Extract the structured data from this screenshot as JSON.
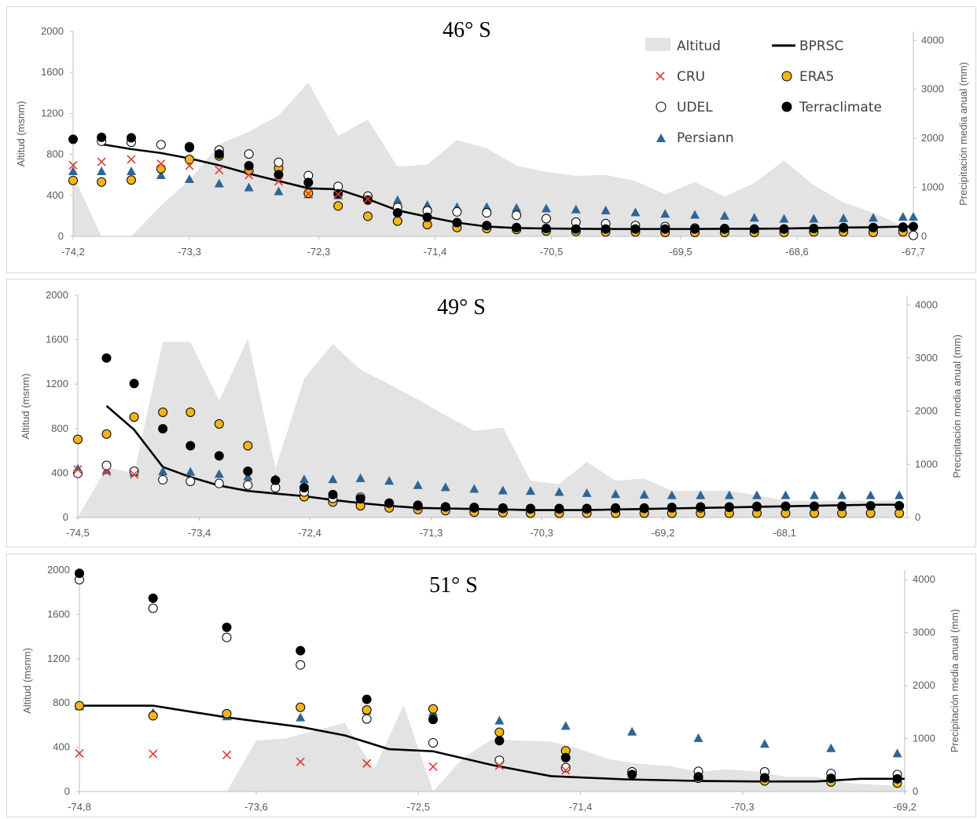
{
  "legend": {
    "altitud": "Altitud",
    "bprsc": "BPRSC",
    "cru": "CRU",
    "era5": "ERA5",
    "udel": "UDEL",
    "terraclimate": "Terraclimate",
    "persiann": "Persiann"
  },
  "colors": {
    "altitud": "#e3e3e3",
    "bprsc": "#000000",
    "cru": "#e03c31",
    "era5": "#f2b51c",
    "udel": "#ffffff",
    "terraclimate": "#000000",
    "persiann": "#2e6496"
  },
  "chart_data": [
    {
      "type": "line",
      "title": "46° S",
      "ylabel": "Altitud (msnm)",
      "y2label": "Precipitación media anual (mm)",
      "ylim": [
        0,
        2000
      ],
      "y2lim": [
        0,
        4181
      ],
      "xlim": [
        -74.2,
        -67.7
      ],
      "xticks": [
        "-74,2",
        "-73,3",
        "-72,3",
        "-71,4",
        "-70,5",
        "-69,5",
        "-68,6",
        "-67,7"
      ],
      "xtick_values": [
        -74.2,
        -73.3,
        -72.3,
        -71.4,
        -70.5,
        -69.5,
        -68.6,
        -67.7
      ],
      "yticks": [
        "0",
        "400",
        "800",
        "1200",
        "1600",
        "2000"
      ],
      "y2ticks": [
        "0",
        "1000",
        "2000",
        "3000",
        "4000"
      ],
      "legend_position": "top-right",
      "x": [
        -74.2,
        -73.98,
        -73.75,
        -73.52,
        -73.3,
        -73.07,
        -72.84,
        -72.61,
        -72.38,
        -72.15,
        -71.92,
        -71.69,
        -71.46,
        -71.23,
        -71.0,
        -70.77,
        -70.54,
        -70.31,
        -70.08,
        -69.85,
        -69.62,
        -69.39,
        -69.16,
        -68.93,
        -68.7,
        -68.47,
        -68.24,
        -68.01,
        -67.78,
        -67.7
      ],
      "altitud": [
        600,
        0,
        0,
        300,
        550,
        900,
        1020,
        1180,
        1500,
        980,
        1140,
        680,
        700,
        940,
        860,
        690,
        630,
        590,
        600,
        540,
        410,
        530,
        390,
        520,
        740,
        500,
        330,
        230,
        100,
        60
      ],
      "bprsc": [
        null,
        1880,
        1780,
        1700,
        1590,
        1450,
        1280,
        1130,
        980,
        960,
        760,
        530,
        400,
        280,
        200,
        170,
        160,
        155,
        150,
        150,
        150,
        150,
        155,
        155,
        160,
        170,
        180,
        185,
        200,
        200
      ],
      "cru": [
        1450,
        1520,
        1570,
        1480,
        1440,
        1350,
        1250,
        1120,
        870,
        860,
        760,
        null,
        null,
        null,
        null,
        null,
        null,
        null,
        null,
        null,
        null,
        null,
        null,
        null,
        null,
        null,
        null,
        null,
        null,
        null
      ],
      "era5": [
        1140,
        1110,
        1150,
        1380,
        1570,
        1640,
        1340,
        1390,
        880,
        620,
        410,
        310,
        240,
        180,
        160,
        140,
        110,
        100,
        90,
        90,
        80,
        80,
        80,
        80,
        80,
        90,
        90,
        80,
        90,
        null
      ],
      "udel": [
        null,
        1940,
        1920,
        1870,
        1830,
        1760,
        1680,
        1510,
        1240,
        1020,
        820,
        590,
        520,
        500,
        480,
        430,
        360,
        290,
        260,
        220,
        200,
        170,
        160,
        150,
        150,
        160,
        180,
        180,
        180,
        20
      ],
      "terraclimate": [
        1980,
        2020,
        2010,
        null,
        1810,
        1680,
        1440,
        1260,
        1100,
        870,
        740,
        480,
        390,
        280,
        220,
        180,
        160,
        150,
        150,
        150,
        150,
        150,
        150,
        150,
        150,
        160,
        170,
        180,
        190,
        200
      ],
      "persiann": [
        1330,
        1330,
        1330,
        1250,
        1170,
        1080,
        1000,
        920,
        860,
        840,
        820,
        740,
        640,
        600,
        600,
        580,
        570,
        550,
        530,
        490,
        460,
        440,
        420,
        380,
        360,
        360,
        370,
        380,
        400,
        400
      ]
    },
    {
      "type": "line",
      "title": "49° S",
      "ylabel": "Altitud (msnm)",
      "y2label": "Precipitación media anual (mm)",
      "ylim": [
        0,
        2000
      ],
      "y2lim": [
        0,
        4181
      ],
      "xlim": [
        -74.5,
        -66.99
      ],
      "xticks": [
        "-74,5",
        "-73,4",
        "-72,4",
        "-71,3",
        "-70,3",
        "-69,2",
        "-68,1"
      ],
      "xtick_values": [
        -74.5,
        -73.4,
        -72.4,
        -71.3,
        -70.3,
        -69.2,
        -68.1
      ],
      "yticks": [
        "0",
        "400",
        "800",
        "1200",
        "1600",
        "2000"
      ],
      "y2ticks": [
        "0",
        "1000",
        "2000",
        "3000",
        "4000"
      ],
      "legend_position": "none",
      "x": [
        -74.5,
        -74.24,
        -73.99,
        -73.73,
        -73.48,
        -73.22,
        -72.96,
        -72.71,
        -72.45,
        -72.19,
        -71.94,
        -71.68,
        -71.42,
        -71.17,
        -70.91,
        -70.65,
        -70.4,
        -70.14,
        -69.89,
        -69.63,
        -69.37,
        -69.12,
        -68.86,
        -68.6,
        -68.35,
        -68.09,
        -67.83,
        -67.58,
        -67.32,
        -67.06
      ],
      "altitud": [
        0,
        450,
        400,
        1580,
        1580,
        1050,
        1610,
        440,
        1250,
        1560,
        1330,
        1200,
        1060,
        920,
        780,
        810,
        330,
        300,
        500,
        330,
        350,
        240,
        240,
        240,
        200,
        150,
        150,
        150,
        150,
        150
      ],
      "bprsc": [
        null,
        2100,
        1650,
        950,
        760,
        600,
        500,
        450,
        400,
        330,
        270,
        220,
        180,
        170,
        160,
        150,
        140,
        140,
        140,
        150,
        160,
        170,
        180,
        190,
        200,
        210,
        220,
        230,
        240,
        240
      ],
      "cru": [
        900,
        860,
        810,
        null,
        null,
        null,
        null,
        null,
        null,
        null,
        null,
        null,
        null,
        null,
        null,
        null,
        null,
        null,
        null,
        null,
        null,
        null,
        null,
        null,
        null,
        null,
        null,
        null,
        null,
        null
      ],
      "era5": [
        1470,
        1570,
        1890,
        1980,
        1980,
        1760,
        1350,
        null,
        390,
        290,
        220,
        180,
        150,
        130,
        100,
        90,
        80,
        80,
        80,
        80,
        80,
        80,
        80,
        80,
        80,
        80,
        80,
        80,
        80,
        80
      ],
      "udel": [
        830,
        980,
        870,
        710,
        680,
        640,
        610,
        560,
        480,
        360,
        380,
        270,
        230,
        200,
        180,
        170,
        160,
        160,
        160,
        170,
        170,
        180,
        180,
        190,
        200,
        210,
        210,
        210,
        220,
        220
      ],
      "terraclimate": [
        null,
        3000,
        2520,
        1670,
        1350,
        1160,
        870,
        700,
        560,
        430,
        350,
        270,
        220,
        200,
        190,
        180,
        170,
        170,
        170,
        180,
        180,
        190,
        200,
        200,
        210,
        210,
        210,
        210,
        220,
        220
      ],
      "persiann": [
        920,
        890,
        850,
        870,
        860,
        820,
        770,
        730,
        720,
        720,
        740,
        690,
        610,
        570,
        540,
        510,
        500,
        480,
        460,
        440,
        430,
        420,
        420,
        420,
        420,
        420,
        420,
        420,
        420,
        420
      ]
    },
    {
      "type": "line",
      "title": "51° S",
      "ylabel": "Altitud (msnm)",
      "y2label": "Precipitación media anual (mm)",
      "ylim": [
        0,
        2000
      ],
      "y2lim": [
        0,
        4181
      ],
      "xlim": [
        -74.8,
        -69.2
      ],
      "xticks": [
        "-74,8",
        "-73,6",
        "-72,5",
        "-71,4",
        "-70,3",
        "-69,2"
      ],
      "xtick_values": [
        -74.8,
        -73.6,
        -72.5,
        -71.4,
        -70.3,
        -69.2
      ],
      "yticks": [
        "0",
        "400",
        "800",
        "1200",
        "1600",
        "2000"
      ],
      "y2ticks": [
        "0",
        "1000",
        "2000",
        "3000",
        "4000"
      ],
      "legend_position": "none",
      "x": [
        -74.8,
        -74.3,
        -73.8,
        -73.3,
        -72.8,
        -72.3,
        -71.8,
        -71.3,
        -70.8,
        -70.3,
        -69.8,
        -69.2
      ],
      "x_pts": [
        -74.8,
        -74.3,
        -73.8,
        -73.3,
        -72.8,
        -72.4,
        -71.95,
        -71.5,
        -71.05,
        -70.6,
        -70.15,
        -69.7,
        -69.25
      ],
      "altitud_x": [
        -74.8,
        -74.4,
        -74.0,
        -73.8,
        -73.6,
        -73.4,
        -73.2,
        -73.0,
        -72.8,
        -72.6,
        -72.4,
        -72.2,
        -72.0,
        -71.8,
        -71.6,
        -71.4,
        -71.2,
        -71.0,
        -70.8,
        -70.6,
        -70.4,
        -70.2,
        -70.0,
        -69.8,
        -69.6,
        -69.4,
        -69.2
      ],
      "altitud": [
        0,
        0,
        0,
        0,
        460,
        480,
        550,
        620,
        200,
        780,
        0,
        300,
        470,
        460,
        450,
        380,
        290,
        250,
        230,
        180,
        200,
        180,
        130,
        130,
        80,
        60,
        50
      ],
      "bprsc_x": [
        -74.8,
        -74.3,
        -73.8,
        -73.3,
        -73.0,
        -72.7,
        -72.4,
        -72.0,
        -71.6,
        -71.1,
        -70.6,
        -70.2,
        -69.8,
        -69.5,
        -69.2
      ],
      "bprsc": [
        1620,
        1620,
        1400,
        1220,
        1060,
        800,
        760,
        500,
        290,
        230,
        200,
        190,
        190,
        240,
        240
      ],
      "cru": [
        720,
        710,
        690,
        560,
        530,
        470,
        490,
        400,
        null,
        null,
        null,
        null,
        null
      ],
      "era5": [
        1620,
        1430,
        1470,
        1590,
        1540,
        1560,
        1120,
        770,
        370,
        250,
        200,
        180,
        160,
        140,
        120
      ],
      "udel": [
        4000,
        3460,
        2910,
        2390,
        1370,
        920,
        590,
        450,
        370,
        380,
        370,
        340,
        320,
        290,
        260,
        250
      ],
      "terraclimate": [
        4120,
        3650,
        3100,
        2660,
        1740,
        1360,
        960,
        640,
        320,
        280,
        260,
        250,
        240,
        230,
        240,
        240
      ],
      "persiann": [
        1610,
        1490,
        1420,
        1400,
        1530,
        1500,
        1340,
        1240,
        1130,
        1010,
        900,
        820,
        720,
        680,
        660,
        620,
        560
      ],
      "marker_x": [
        -74.8,
        -74.3,
        -73.8,
        -73.3,
        -72.85,
        -72.4,
        -71.95,
        -71.5,
        -71.05,
        -70.6,
        -70.15,
        -69.7,
        -69.25
      ]
    }
  ]
}
